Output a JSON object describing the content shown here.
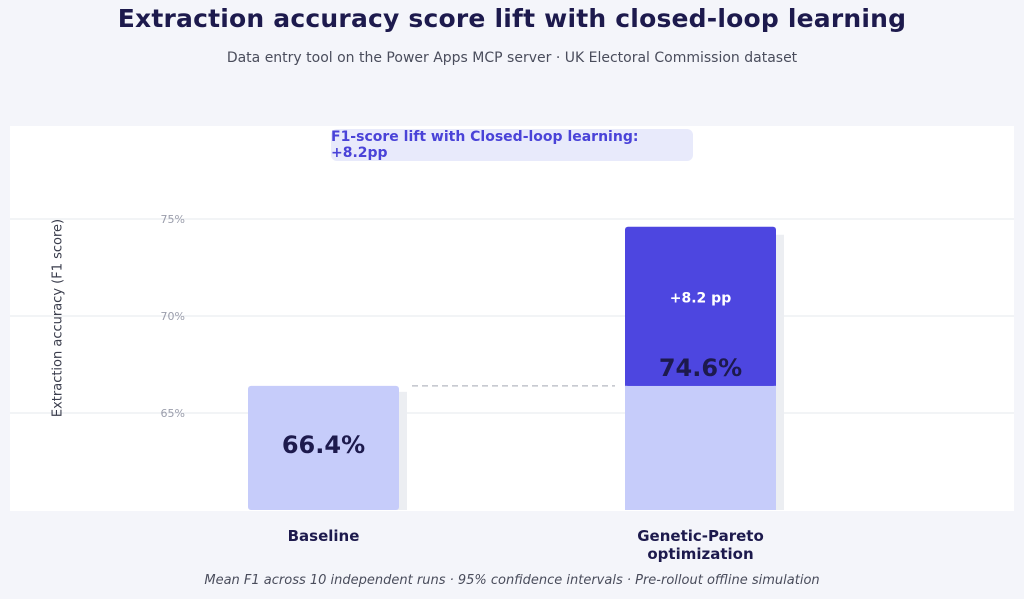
{
  "title": "Extraction accuracy score lift with closed-loop learning",
  "subtitle": "Data entry tool on the Power Apps MCP server  ·  UK Electoral Commission dataset",
  "callout": "F1-score lift with Closed-loop learning: +8.2pp",
  "footnote": "Mean F1 across 10 independent runs  ·  95% confidence intervals  ·  Pre-rollout offline simulation",
  "colors": {
    "baseline_bar": "#c6ccfa",
    "lift_segment": "#4d46e0",
    "bar_shadow": "#eceef2",
    "title": "#1d1a4d"
  },
  "chart_data": {
    "type": "bar",
    "title": "Extraction accuracy score lift with closed-loop learning",
    "ylabel": "Extraction accuracy (F1 score)",
    "xlabel": "",
    "categories": [
      "Baseline",
      "Genetic-Pareto optimization"
    ],
    "values": [
      66.4,
      74.6
    ],
    "value_labels": [
      "66.4%",
      "74.6%"
    ],
    "lift": {
      "category": "Genetic-Pareto optimization",
      "from": 66.4,
      "to": 74.6,
      "label": "+8.2 pp"
    },
    "yticks": [
      65,
      70,
      75
    ],
    "ytick_labels": [
      "65%",
      "70%",
      "75%"
    ],
    "ylim": [
      60,
      75.6
    ],
    "grid": true,
    "legend": "none"
  }
}
